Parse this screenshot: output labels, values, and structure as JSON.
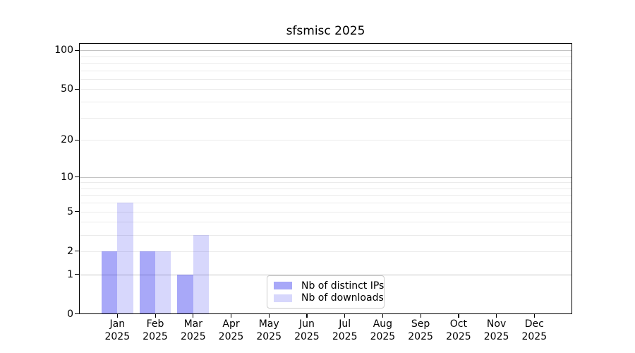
{
  "chart_data": {
    "type": "bar",
    "title": "sfsmisc 2025",
    "year_label": "2025",
    "categories": [
      "Jan",
      "Feb",
      "Mar",
      "Apr",
      "May",
      "Jun",
      "Jul",
      "Aug",
      "Sep",
      "Oct",
      "Nov",
      "Dec"
    ],
    "series": [
      {
        "name": "Nb of distinct IPs",
        "color": "rgba(5,5,235,0.35)",
        "values": [
          2,
          2,
          1,
          0,
          0,
          0,
          0,
          0,
          0,
          0,
          0,
          0
        ]
      },
      {
        "name": "Nb of downloads",
        "color": "rgba(5,5,235,0.16)",
        "values": [
          6,
          2,
          3,
          0,
          0,
          0,
          0,
          0,
          0,
          0,
          0,
          0
        ]
      }
    ],
    "xlabel": "",
    "ylabel": "",
    "yscale": "log1p",
    "ylim": [
      0,
      113
    ],
    "yticks": [
      0,
      1,
      2,
      5,
      10,
      20,
      50,
      100
    ],
    "grid": {
      "major_values": [
        1,
        10,
        100
      ],
      "minor_values": [
        2,
        3,
        4,
        5,
        6,
        7,
        8,
        9,
        20,
        30,
        40,
        50,
        60,
        70,
        80,
        90
      ],
      "major_color": "#c3c3c3",
      "minor_color": "#ebebeb"
    },
    "legend_position": "inside-lower-center",
    "axis_color": "#000000",
    "background_color": "#ffffff"
  }
}
